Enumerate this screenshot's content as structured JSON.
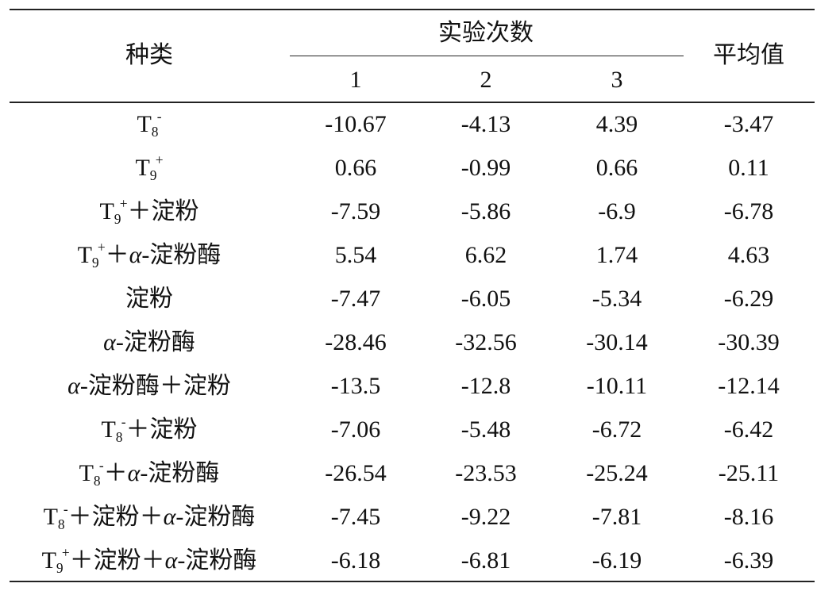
{
  "table": {
    "header": {
      "category": "种类",
      "trials": "实验次数",
      "trial_numbers": [
        "1",
        "2",
        "3"
      ],
      "mean": "平均值"
    },
    "rows": [
      {
        "label": [
          {
            "text": "T"
          },
          {
            "text": "8",
            "style": "sub"
          },
          {
            "text": "-",
            "style": "sup"
          }
        ],
        "values": [
          -10.67,
          -4.13,
          4.39
        ],
        "mean": -3.47
      },
      {
        "label": [
          {
            "text": "T"
          },
          {
            "text": "9",
            "style": "sub"
          },
          {
            "text": "+",
            "style": "sup"
          }
        ],
        "values": [
          0.66,
          -0.99,
          0.66
        ],
        "mean": 0.11
      },
      {
        "label": [
          {
            "text": "T"
          },
          {
            "text": "9",
            "style": "sub"
          },
          {
            "text": "+",
            "style": "sup"
          },
          {
            "text": "＋淀粉"
          }
        ],
        "values": [
          -7.59,
          -5.86,
          -6.9
        ],
        "mean": -6.78
      },
      {
        "label": [
          {
            "text": "T"
          },
          {
            "text": "9",
            "style": "sub"
          },
          {
            "text": "+",
            "style": "sup"
          },
          {
            "text": "＋"
          },
          {
            "text": "α",
            "style": "italic"
          },
          {
            "text": "-淀粉酶"
          }
        ],
        "values": [
          5.54,
          6.62,
          1.74
        ],
        "mean": 4.63
      },
      {
        "label": [
          {
            "text": "淀粉"
          }
        ],
        "values": [
          -7.47,
          -6.05,
          -5.34
        ],
        "mean": -6.29
      },
      {
        "label": [
          {
            "text": "α",
            "style": "italic"
          },
          {
            "text": "-淀粉酶"
          }
        ],
        "values": [
          -28.46,
          -32.56,
          -30.14
        ],
        "mean": -30.39
      },
      {
        "label": [
          {
            "text": "α",
            "style": "italic"
          },
          {
            "text": "-淀粉酶＋淀粉"
          }
        ],
        "values": [
          -13.5,
          -12.8,
          -10.11
        ],
        "mean": -12.14
      },
      {
        "label": [
          {
            "text": "T"
          },
          {
            "text": "8",
            "style": "sub"
          },
          {
            "text": "-",
            "style": "sup"
          },
          {
            "text": "＋淀粉"
          }
        ],
        "values": [
          -7.06,
          -5.48,
          -6.72
        ],
        "mean": -6.42
      },
      {
        "label": [
          {
            "text": "T"
          },
          {
            "text": "8",
            "style": "sub"
          },
          {
            "text": "-",
            "style": "sup"
          },
          {
            "text": "＋"
          },
          {
            "text": "α",
            "style": "italic"
          },
          {
            "text": "-淀粉酶"
          }
        ],
        "values": [
          -26.54,
          -23.53,
          -25.24
        ],
        "mean": -25.11
      },
      {
        "label": [
          {
            "text": "T"
          },
          {
            "text": "8",
            "style": "sub"
          },
          {
            "text": "-",
            "style": "sup"
          },
          {
            "text": "＋淀粉＋"
          },
          {
            "text": "α",
            "style": "italic"
          },
          {
            "text": "-淀粉酶"
          }
        ],
        "values": [
          -7.45,
          -9.22,
          -7.81
        ],
        "mean": -8.16
      },
      {
        "label": [
          {
            "text": "T"
          },
          {
            "text": "9",
            "style": "sub"
          },
          {
            "text": "+",
            "style": "sup"
          },
          {
            "text": "＋淀粉＋"
          },
          {
            "text": "α",
            "style": "italic"
          },
          {
            "text": "-淀粉酶"
          }
        ],
        "values": [
          -6.18,
          -6.81,
          -6.19
        ],
        "mean": -6.39
      }
    ]
  }
}
